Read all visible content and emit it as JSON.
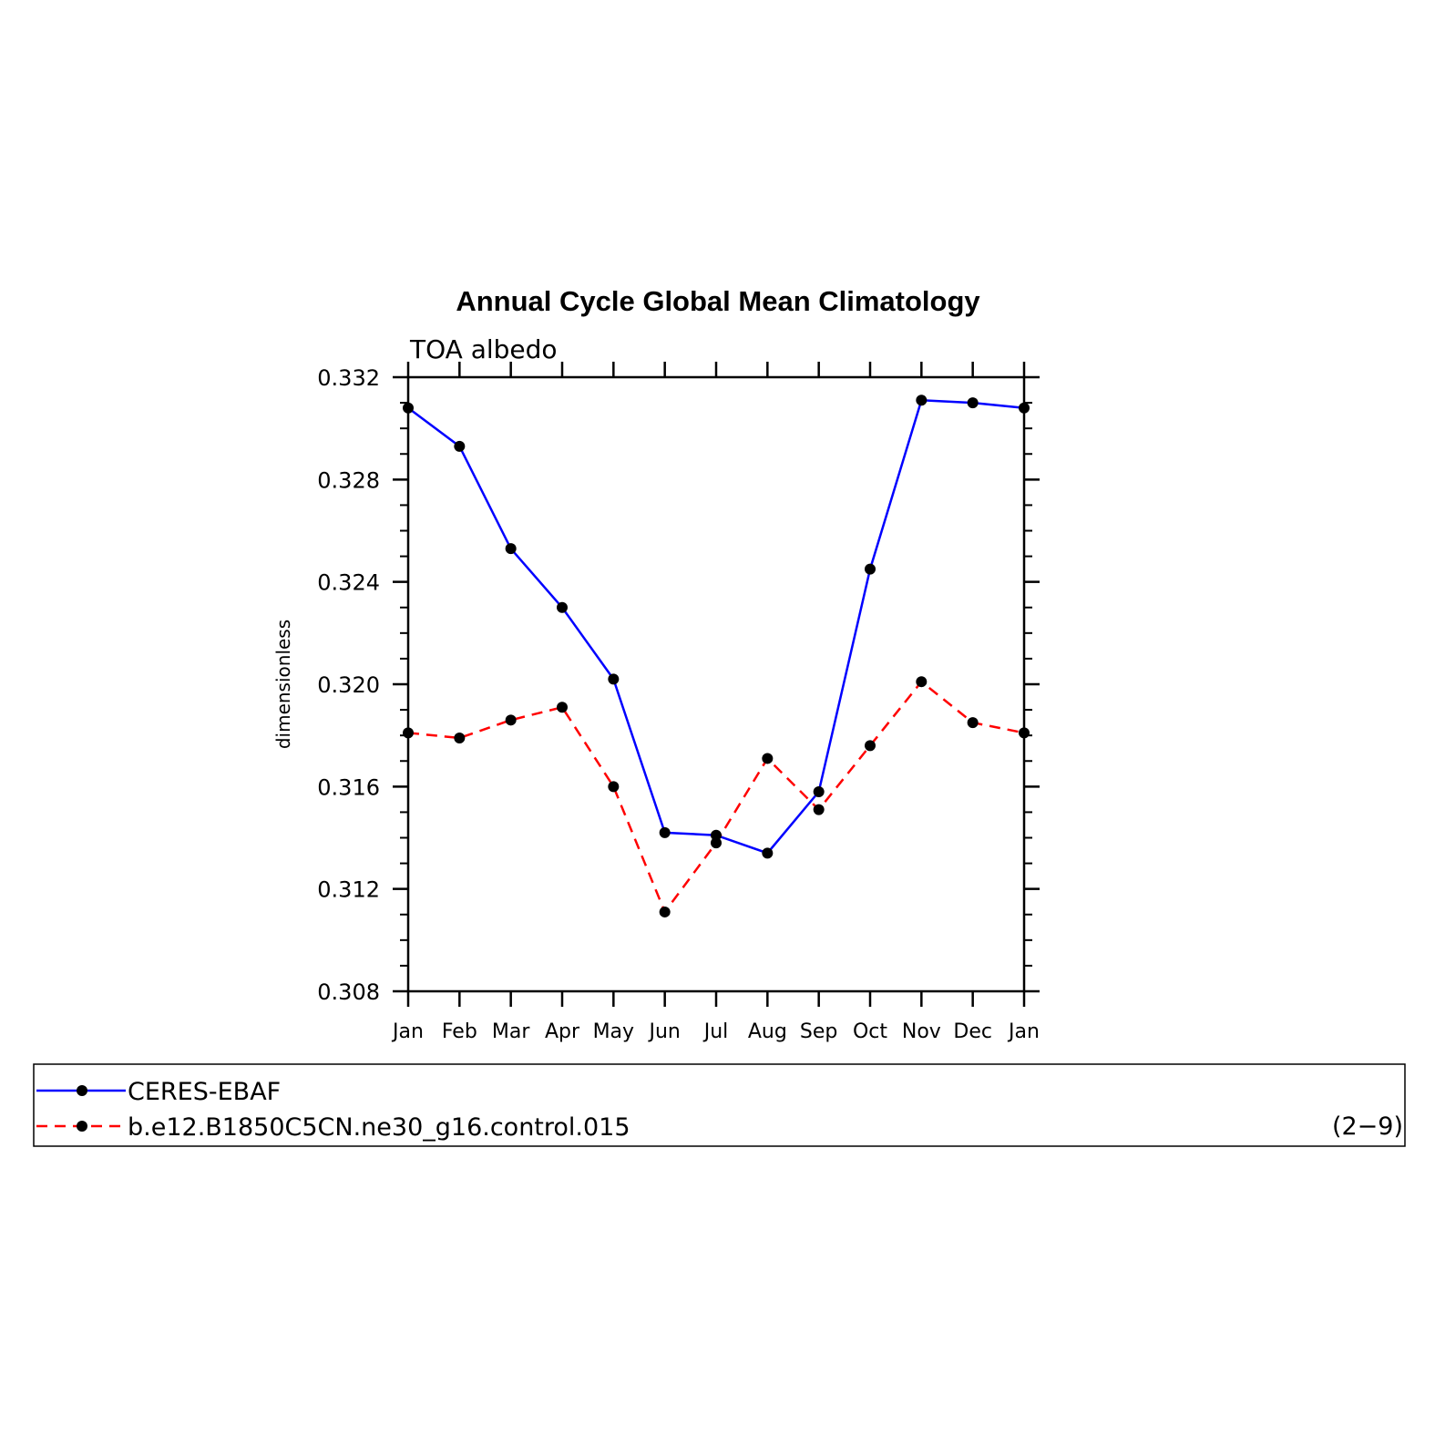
{
  "chart_data": {
    "type": "line",
    "title": "Annual Cycle Global Mean Climatology",
    "subtitle": "TOA albedo",
    "xlabel": "",
    "ylabel": "dimensionless",
    "categories": [
      "Jan",
      "Feb",
      "Mar",
      "Apr",
      "May",
      "Jun",
      "Jul",
      "Aug",
      "Sep",
      "Oct",
      "Nov",
      "Dec",
      "Jan"
    ],
    "ylim": [
      0.308,
      0.332
    ],
    "yticks": [
      "0.308",
      "0.312",
      "0.316",
      "0.320",
      "0.324",
      "0.328",
      "0.332"
    ],
    "series": [
      {
        "name": "CERES-EBAF",
        "color": "#0000ff",
        "dash": "solid",
        "marker": "dot",
        "values": [
          0.3308,
          0.3293,
          0.3253,
          0.323,
          0.3202,
          0.3142,
          0.3141,
          0.3134,
          0.3158,
          0.3245,
          0.3311,
          0.331,
          0.3308
        ]
      },
      {
        "name": "b.e12.B1850C5CN.ne30_g16.control.015",
        "color": "#ff0000",
        "dash": "dashed",
        "marker": "dot",
        "values": [
          0.3181,
          0.3179,
          0.3186,
          0.3191,
          0.316,
          0.3111,
          0.3138,
          0.3171,
          0.3151,
          0.3176,
          0.3201,
          0.3185,
          0.3181
        ]
      }
    ],
    "grid": false,
    "legend_position": "bottom",
    "legend_note": "(2−9)"
  }
}
